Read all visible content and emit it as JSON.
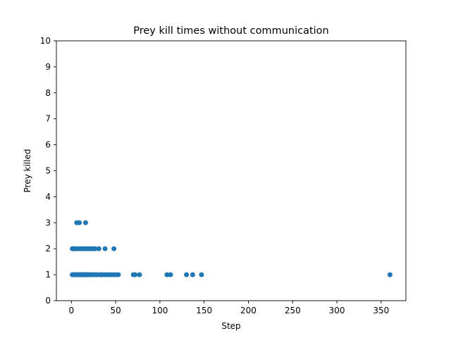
{
  "chart_data": {
    "type": "scatter",
    "title": "Prey kill times without communication",
    "xlabel": "Step",
    "ylabel": "Prey killed",
    "xlim": [
      -17,
      378
    ],
    "ylim": [
      0,
      10
    ],
    "xticks": [
      0,
      50,
      100,
      150,
      200,
      250,
      300,
      350
    ],
    "yticks": [
      0,
      1,
      2,
      3,
      4,
      5,
      6,
      7,
      8,
      9,
      10
    ],
    "grid": false,
    "legend": "none",
    "marker_color": "#1f77b4",
    "series": [
      {
        "points": [
          [
            1,
            1
          ],
          [
            2,
            1
          ],
          [
            3,
            1
          ],
          [
            4,
            1
          ],
          [
            5,
            1
          ],
          [
            6,
            1
          ],
          [
            7,
            1
          ],
          [
            8,
            1
          ],
          [
            9,
            1
          ],
          [
            10,
            1
          ],
          [
            11,
            1
          ],
          [
            12,
            1
          ],
          [
            13,
            1
          ],
          [
            14,
            1
          ],
          [
            15,
            1
          ],
          [
            16,
            1
          ],
          [
            17,
            1
          ],
          [
            18,
            1
          ],
          [
            19,
            1
          ],
          [
            20,
            1
          ],
          [
            22,
            1
          ],
          [
            24,
            1
          ],
          [
            26,
            1
          ],
          [
            28,
            1
          ],
          [
            30,
            1
          ],
          [
            33,
            1
          ],
          [
            35,
            1
          ],
          [
            38,
            1
          ],
          [
            41,
            1
          ],
          [
            44,
            1
          ],
          [
            47,
            1
          ],
          [
            50,
            1
          ],
          [
            53,
            1
          ],
          [
            70,
            1
          ],
          [
            72,
            1
          ],
          [
            77,
            1
          ],
          [
            108,
            1
          ],
          [
            112,
            1
          ],
          [
            130,
            1
          ],
          [
            137,
            1
          ],
          [
            147,
            1
          ],
          [
            360,
            1
          ],
          [
            1,
            2
          ],
          [
            2,
            2
          ],
          [
            3,
            2
          ],
          [
            4,
            2
          ],
          [
            5,
            2
          ],
          [
            7,
            2
          ],
          [
            9,
            2
          ],
          [
            11,
            2
          ],
          [
            13,
            2
          ],
          [
            15,
            2
          ],
          [
            17,
            2
          ],
          [
            19,
            2
          ],
          [
            21,
            2
          ],
          [
            23,
            2
          ],
          [
            25,
            2
          ],
          [
            27,
            2
          ],
          [
            31,
            2
          ],
          [
            38,
            2
          ],
          [
            48,
            2
          ],
          [
            6,
            3
          ],
          [
            9,
            3
          ],
          [
            16,
            3
          ]
        ]
      }
    ]
  }
}
